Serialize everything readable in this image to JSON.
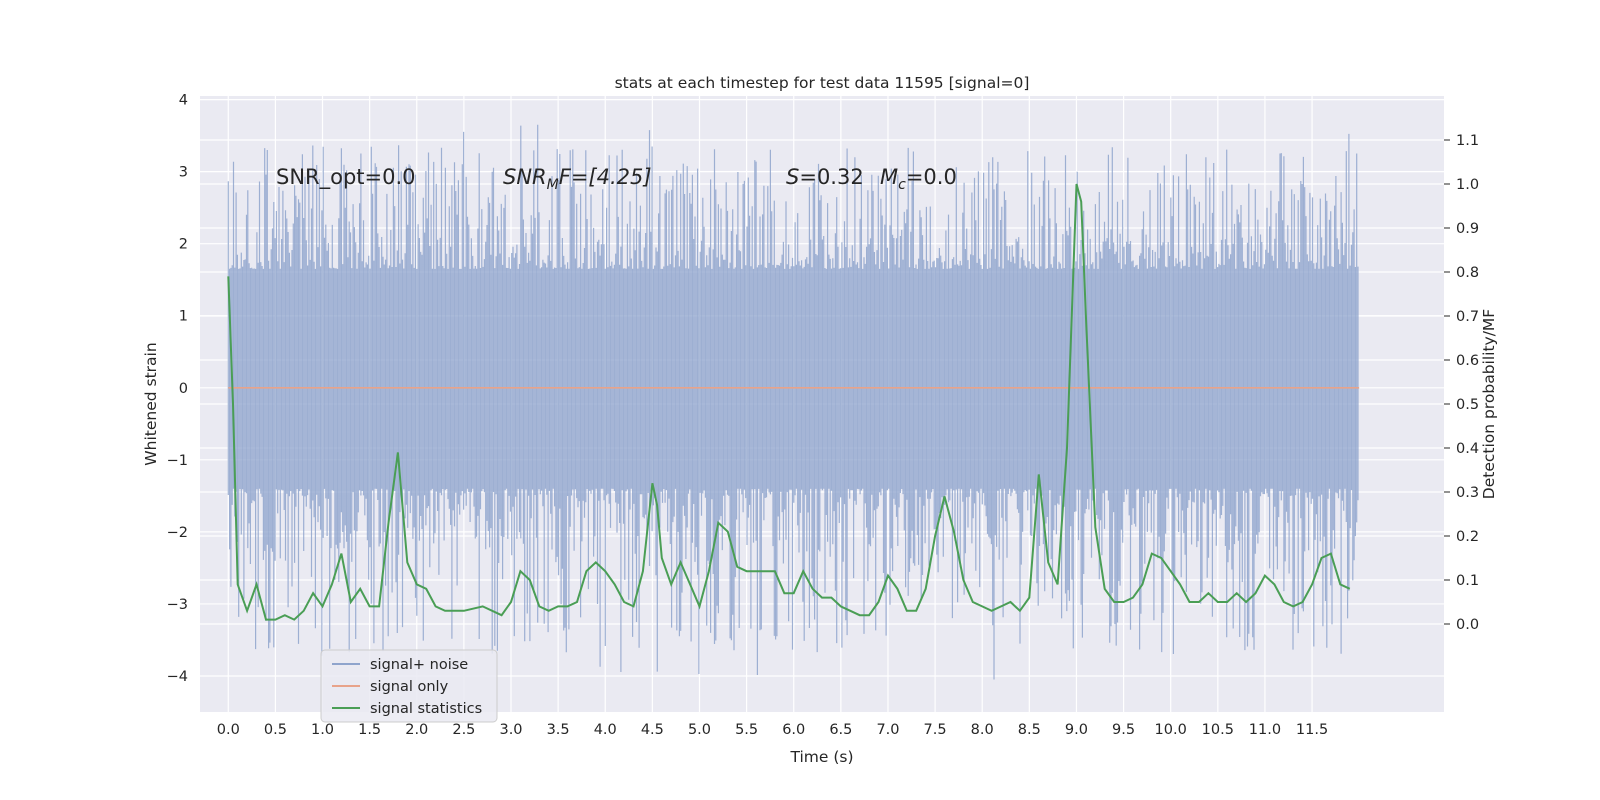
{
  "chart_data": {
    "type": "line",
    "title": "stats at each timestep for test data 11595 [signal=0]",
    "xlabel": "Time (s)",
    "ylabel_left": "Whitened strain",
    "ylabel_right": "Detection probability/MF",
    "xlim": [
      -0.3,
      12.9
    ],
    "ylim_left": [
      -4.5,
      4.05
    ],
    "ylim_right": [
      -0.2,
      1.2
    ],
    "x_ticks": [
      0.0,
      0.5,
      1.0,
      1.5,
      2.0,
      2.5,
      3.0,
      3.5,
      4.0,
      4.5,
      5.0,
      5.5,
      6.0,
      6.5,
      7.0,
      7.5,
      8.0,
      8.5,
      9.0,
      9.5,
      10.0,
      10.5,
      11.0,
      11.5
    ],
    "x_tick_labels": [
      "0.0",
      "0.5",
      "1.0",
      "1.5",
      "2.0",
      "2.5",
      "3.0",
      "3.5",
      "4.0",
      "4.5",
      "5.0",
      "5.5",
      "6.0",
      "6.5",
      "7.0",
      "7.5",
      "8.0",
      "8.5",
      "9.0",
      "9.5",
      "10.0",
      "10.5",
      "11.0",
      "11.5"
    ],
    "y_left_ticks": [
      4,
      3,
      2,
      1,
      0,
      -1,
      -2,
      -3,
      -4
    ],
    "y_left_tick_labels": [
      "4",
      "3",
      "2",
      "1",
      "0",
      "−1",
      "−2",
      "−3",
      "−4"
    ],
    "y_right_ticks": [
      1.1,
      1.0,
      0.9,
      0.8,
      0.7,
      0.6,
      0.5,
      0.4,
      0.3,
      0.2,
      0.1,
      0.0
    ],
    "y_right_tick_labels": [
      "1.1",
      "1.0",
      "0.9",
      "0.8",
      "0.7",
      "0.6",
      "0.5",
      "0.4",
      "0.3",
      "0.2",
      "0.1",
      "0.0"
    ],
    "grid": true,
    "legend_position": "lower-left",
    "annotations": {
      "snr_opt": "SNR_opt=0.0",
      "snr_mf_main": "SNR",
      "snr_mf_sub": "M",
      "snr_mf_rest": "F=[4.25]",
      "s_symbol": "S",
      "s_value": "=0.32",
      "mc_symbol": "M",
      "mc_sub": "c",
      "mc_value": "=0.0"
    },
    "series": [
      {
        "name": "signal+ noise",
        "color": "#8fa4cc",
        "axis": "left",
        "x_range": [
          0.0,
          12.0
        ],
        "envelope_typical": [
          -1.4,
          1.65
        ],
        "peak_max": 3.68,
        "peak_min": -4.1
      },
      {
        "name": "signal only",
        "color": "#e8a38a",
        "axis": "left",
        "x": [
          0.0,
          12.0
        ],
        "y": [
          0.0,
          0.0
        ]
      },
      {
        "name": "signal statistics",
        "color": "#4a9e55",
        "axis": "right",
        "x": [
          0.0,
          0.05,
          0.1,
          0.2,
          0.3,
          0.4,
          0.5,
          0.6,
          0.7,
          0.8,
          0.9,
          1.0,
          1.1,
          1.2,
          1.3,
          1.4,
          1.5,
          1.6,
          1.7,
          1.8,
          1.9,
          2.0,
          2.1,
          2.2,
          2.3,
          2.5,
          2.7,
          2.9,
          3.0,
          3.1,
          3.2,
          3.3,
          3.4,
          3.5,
          3.6,
          3.7,
          3.8,
          3.9,
          4.0,
          4.1,
          4.2,
          4.3,
          4.4,
          4.5,
          4.55,
          4.6,
          4.7,
          4.8,
          4.9,
          5.0,
          5.1,
          5.2,
          5.3,
          5.4,
          5.5,
          5.6,
          5.7,
          5.8,
          5.9,
          6.0,
          6.1,
          6.2,
          6.3,
          6.4,
          6.5,
          6.6,
          6.7,
          6.8,
          6.9,
          7.0,
          7.1,
          7.2,
          7.3,
          7.4,
          7.5,
          7.6,
          7.7,
          7.8,
          7.9,
          8.0,
          8.1,
          8.2,
          8.3,
          8.4,
          8.5,
          8.6,
          8.7,
          8.8,
          8.9,
          9.0,
          9.05,
          9.1,
          9.2,
          9.3,
          9.4,
          9.5,
          9.6,
          9.7,
          9.8,
          9.9,
          10.0,
          10.1,
          10.2,
          10.3,
          10.4,
          10.5,
          10.6,
          10.7,
          10.8,
          10.9,
          11.0,
          11.1,
          11.2,
          11.3,
          11.4,
          11.5,
          11.6,
          11.7,
          11.8,
          11.9
        ],
        "y": [
          0.79,
          0.5,
          0.09,
          0.03,
          0.09,
          0.01,
          0.01,
          0.02,
          0.01,
          0.03,
          0.07,
          0.04,
          0.09,
          0.16,
          0.05,
          0.08,
          0.04,
          0.04,
          0.23,
          0.39,
          0.14,
          0.09,
          0.08,
          0.04,
          0.03,
          0.03,
          0.04,
          0.02,
          0.05,
          0.12,
          0.1,
          0.04,
          0.03,
          0.04,
          0.04,
          0.05,
          0.12,
          0.14,
          0.12,
          0.09,
          0.05,
          0.04,
          0.12,
          0.32,
          0.27,
          0.15,
          0.09,
          0.14,
          0.09,
          0.04,
          0.12,
          0.23,
          0.21,
          0.13,
          0.12,
          0.12,
          0.12,
          0.12,
          0.07,
          0.07,
          0.12,
          0.08,
          0.06,
          0.06,
          0.04,
          0.03,
          0.02,
          0.02,
          0.05,
          0.11,
          0.08,
          0.03,
          0.03,
          0.08,
          0.2,
          0.29,
          0.21,
          0.1,
          0.05,
          0.04,
          0.03,
          0.04,
          0.05,
          0.03,
          0.06,
          0.34,
          0.14,
          0.09,
          0.4,
          1.0,
          0.96,
          0.7,
          0.22,
          0.08,
          0.05,
          0.05,
          0.06,
          0.09,
          0.16,
          0.15,
          0.12,
          0.09,
          0.05,
          0.05,
          0.07,
          0.05,
          0.05,
          0.07,
          0.05,
          0.07,
          0.11,
          0.09,
          0.05,
          0.04,
          0.05,
          0.09,
          0.15,
          0.16,
          0.09,
          0.08
        ]
      }
    ]
  }
}
